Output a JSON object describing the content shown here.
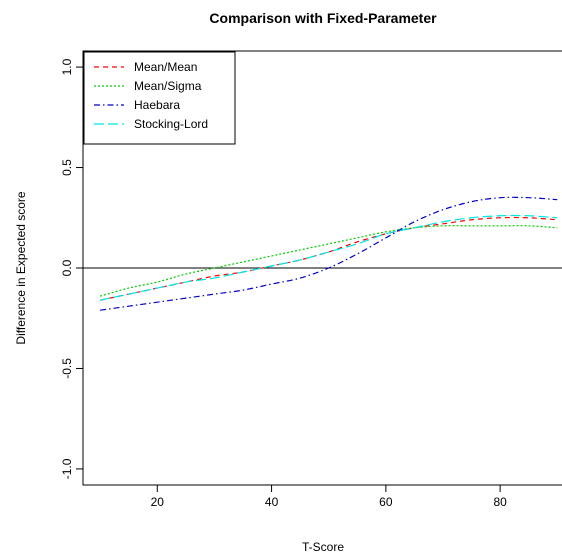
{
  "chart_data": {
    "type": "line",
    "title": "Comparison with Fixed-Parameter",
    "xlabel": "T-Score",
    "ylabel": "Difference in Expected score",
    "xlim": [
      7,
      91
    ],
    "ylim": [
      -1.08,
      1.08
    ],
    "xticks": [
      20,
      40,
      60,
      80
    ],
    "yticks": [
      -1.0,
      -0.5,
      0.0,
      0.5,
      1.0
    ],
    "xtick_labels": [
      "20",
      "40",
      "60",
      "80"
    ],
    "ytick_labels": [
      "-1.0",
      "-0.5",
      "0.0",
      "0.5",
      "1.0"
    ],
    "reference_line_y": 0,
    "legend_position": "top-left",
    "x": [
      10,
      15,
      20,
      25,
      30,
      35,
      40,
      45,
      50,
      55,
      60,
      65,
      70,
      75,
      80,
      85,
      90
    ],
    "series": [
      {
        "name": "Mean/Mean",
        "color": "#ff0000",
        "dash": "5,4",
        "values": [
          -0.16,
          -0.13,
          -0.1,
          -0.07,
          -0.04,
          -0.02,
          0.01,
          0.04,
          0.08,
          0.13,
          0.17,
          0.2,
          0.22,
          0.24,
          0.25,
          0.25,
          0.24
        ]
      },
      {
        "name": "Mean/Sigma",
        "color": "#00cc00",
        "dash": "2,2",
        "values": [
          -0.14,
          -0.1,
          -0.07,
          -0.03,
          0.0,
          0.03,
          0.06,
          0.09,
          0.12,
          0.15,
          0.18,
          0.2,
          0.21,
          0.21,
          0.21,
          0.21,
          0.2
        ]
      },
      {
        "name": "Haebara",
        "color": "#0000cc",
        "dash": "6,3,1.5,3",
        "values": [
          -0.21,
          -0.19,
          -0.17,
          -0.15,
          -0.13,
          -0.11,
          -0.08,
          -0.05,
          0.0,
          0.07,
          0.15,
          0.23,
          0.29,
          0.33,
          0.35,
          0.35,
          0.34
        ]
      },
      {
        "name": "Stocking-Lord",
        "color": "#00e5e5",
        "dash": "10,4",
        "values": [
          -0.16,
          -0.13,
          -0.1,
          -0.07,
          -0.05,
          -0.02,
          0.01,
          0.04,
          0.08,
          0.12,
          0.17,
          0.2,
          0.23,
          0.25,
          0.26,
          0.26,
          0.25
        ]
      }
    ]
  }
}
